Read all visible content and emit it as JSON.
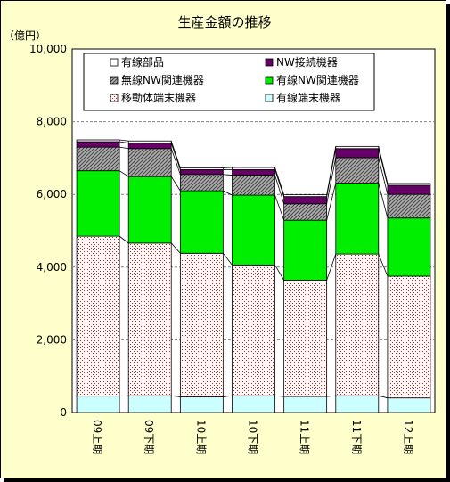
{
  "chart_data": {
    "type": "bar",
    "stacked": true,
    "title": "生産金額の推移",
    "ylabel": "（億円）",
    "xlabel": "",
    "ylim": [
      0,
      10000
    ],
    "yticks": [
      0,
      2000,
      4000,
      6000,
      8000,
      10000
    ],
    "ytick_labels": [
      "0",
      "2,000",
      "4,000",
      "6,000",
      "8,000",
      "10,000"
    ],
    "grid": true,
    "legend_position": "top",
    "categories": [
      "09上期",
      "09下期",
      "10上期",
      "10下期",
      "11上期",
      "11下期",
      "12上期"
    ],
    "series": [
      {
        "name": "有線端末機器",
        "color": "#ccffff",
        "pattern": "solid",
        "values": [
          450,
          460,
          430,
          460,
          440,
          460,
          400
        ]
      },
      {
        "name": "移動体端末機器",
        "color": "#ff0000",
        "pattern": "dots",
        "values": [
          4400,
          4200,
          3950,
          3600,
          3200,
          3900,
          3350
        ]
      },
      {
        "name": "有線NW関連機器",
        "color": "#00ee00",
        "pattern": "solid",
        "values": [
          1800,
          1830,
          1720,
          1920,
          1650,
          1950,
          1600
        ]
      },
      {
        "name": "無線NW関連機器",
        "color": "#808080",
        "pattern": "hatch",
        "values": [
          650,
          770,
          450,
          550,
          450,
          700,
          650
        ]
      },
      {
        "name": "NW接続機器",
        "color": "#660066",
        "pattern": "solid",
        "values": [
          150,
          150,
          130,
          150,
          200,
          250,
          250
        ]
      },
      {
        "name": "有線部品",
        "color": "#ffffff",
        "pattern": "solid",
        "values": [
          50,
          60,
          50,
          60,
          50,
          60,
          50
        ]
      }
    ],
    "legend_order": [
      "有線部品",
      "NW接続機器",
      "無線NW関連機器",
      "有線NW関連機器",
      "移動体端末機器",
      "有線端末機器"
    ],
    "colors": {
      "background": "#ffffcc",
      "plot_background": "#ffffff",
      "grid": "#808080"
    }
  }
}
